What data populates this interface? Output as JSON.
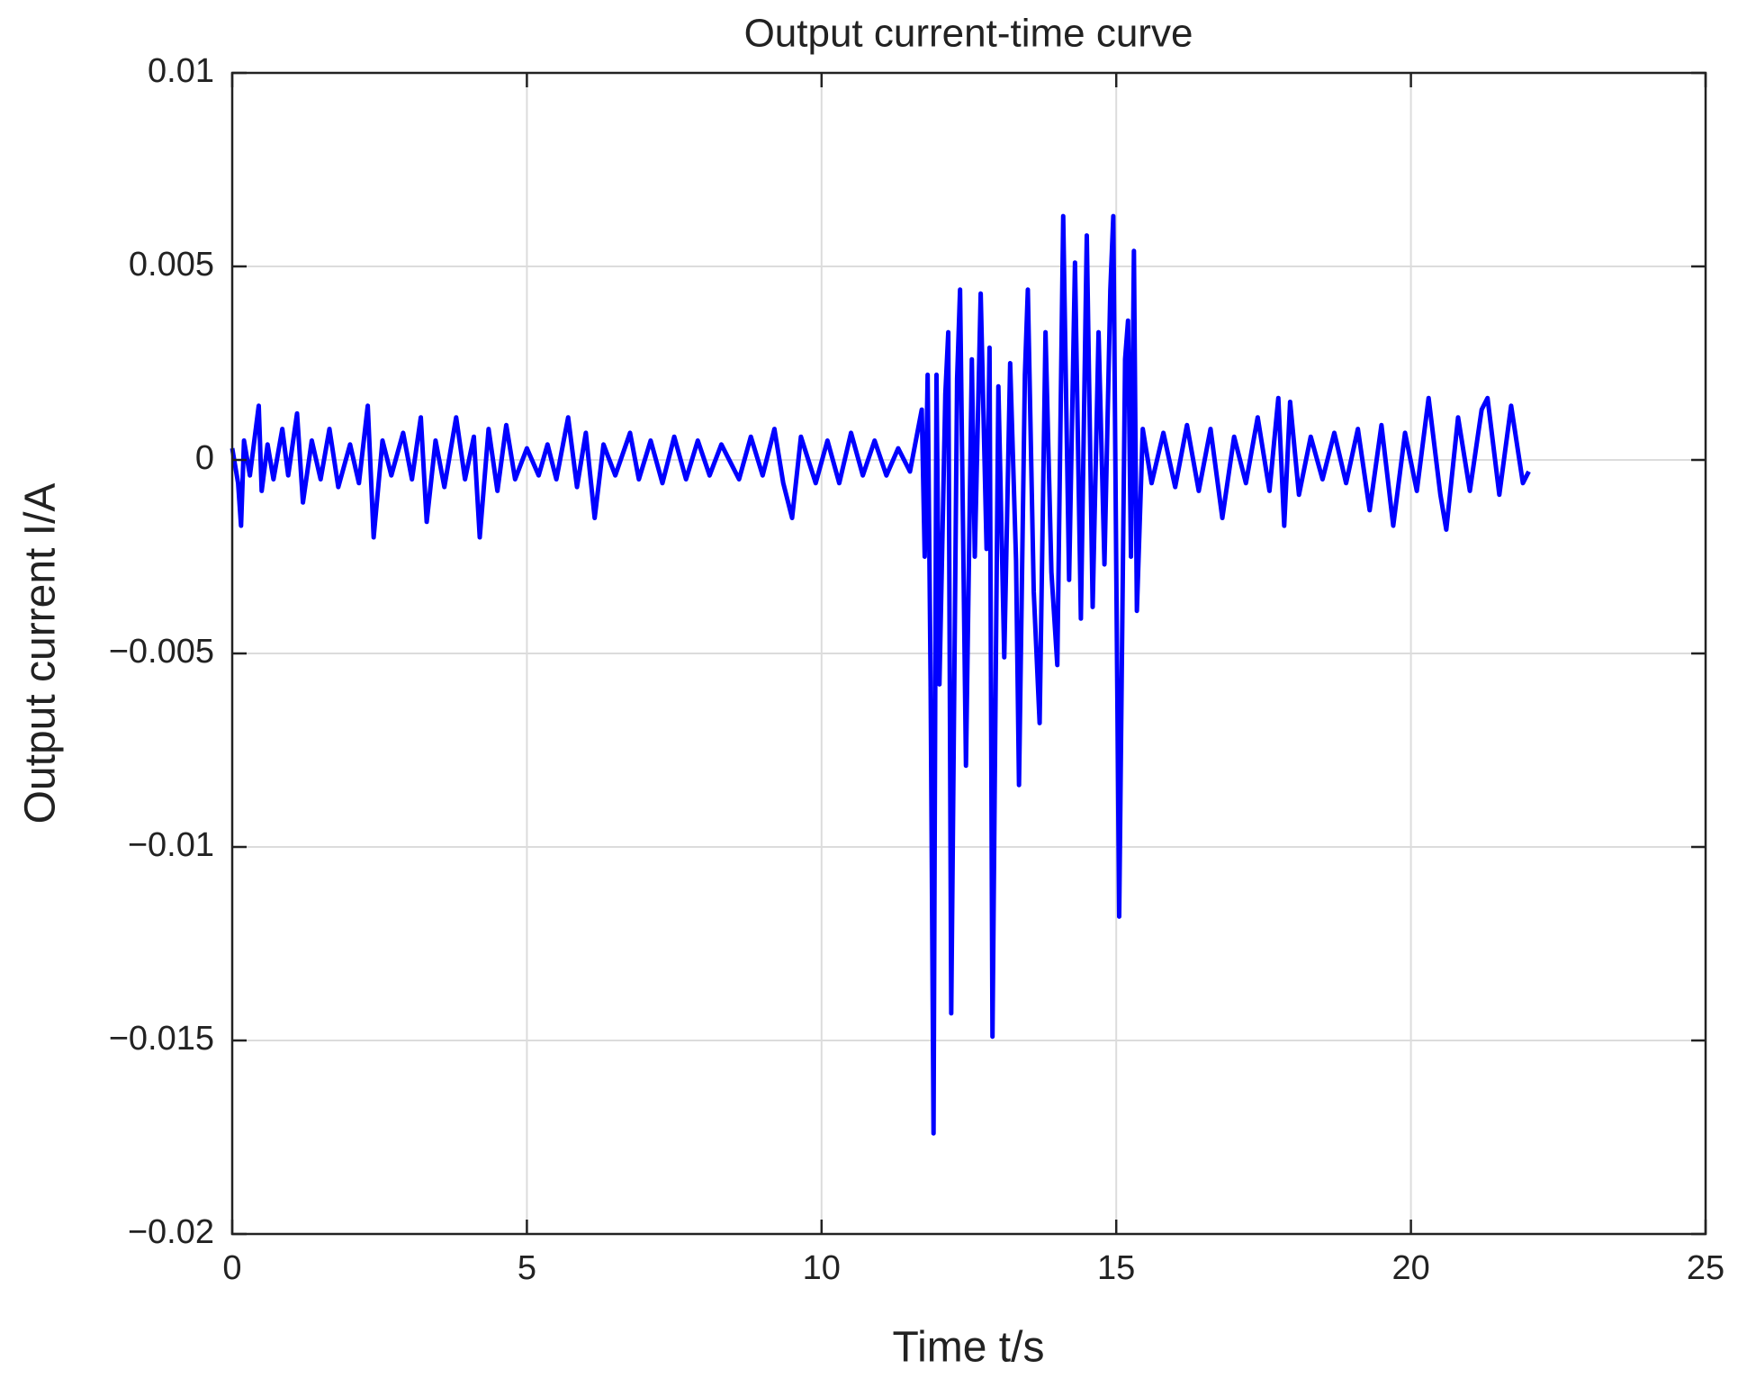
{
  "chart_data": {
    "type": "line",
    "title": "Output current-time curve",
    "x_label": "Time t/s",
    "y_label": "Output current I/A",
    "color": "#0000ff",
    "grid": true,
    "xlim": [
      0,
      25
    ],
    "xticks": [
      0,
      5,
      10,
      15,
      20,
      25
    ],
    "ylim": [
      -0.02,
      0.01
    ],
    "yticks": [
      {
        "value": -0.02,
        "label": "−0.02"
      },
      {
        "value": -0.015,
        "label": "−0.015"
      },
      {
        "value": -0.01,
        "label": "−0.01"
      },
      {
        "value": -0.005,
        "label": "−0.005"
      },
      0,
      0.005,
      0.01
    ],
    "x": [
      0,
      0.1,
      0.15,
      0.2,
      0.3,
      0.45,
      0.5,
      0.6,
      0.7,
      0.85,
      0.95,
      1.1,
      1.2,
      1.35,
      1.5,
      1.65,
      1.8,
      2.0,
      2.15,
      2.3,
      2.4,
      2.55,
      2.7,
      2.9,
      3.05,
      3.2,
      3.3,
      3.45,
      3.6,
      3.8,
      3.95,
      4.1,
      4.2,
      4.35,
      4.5,
      4.65,
      4.8,
      5.0,
      5.2,
      5.35,
      5.5,
      5.7,
      5.85,
      6.0,
      6.15,
      6.3,
      6.5,
      6.75,
      6.9,
      7.1,
      7.3,
      7.5,
      7.7,
      7.9,
      8.1,
      8.3,
      8.6,
      8.8,
      9.0,
      9.2,
      9.35,
      9.5,
      9.65,
      9.9,
      10.1,
      10.3,
      10.5,
      10.7,
      10.9,
      11.1,
      11.3,
      11.5,
      11.7,
      11.75,
      11.8,
      11.85,
      11.9,
      11.95,
      12.0,
      12.1,
      12.15,
      12.2,
      12.3,
      12.35,
      12.45,
      12.55,
      12.6,
      12.7,
      12.8,
      12.85,
      12.9,
      13.0,
      13.1,
      13.2,
      13.3,
      13.35,
      13.45,
      13.5,
      13.6,
      13.7,
      13.8,
      13.9,
      14.0,
      14.1,
      14.2,
      14.3,
      14.4,
      14.5,
      14.6,
      14.7,
      14.8,
      14.9,
      14.95,
      15.05,
      15.15,
      15.2,
      15.25,
      15.3,
      15.35,
      15.45,
      15.6,
      15.8,
      16.0,
      16.2,
      16.4,
      16.6,
      16.8,
      17.0,
      17.2,
      17.4,
      17.6,
      17.75,
      17.85,
      17.95,
      18.1,
      18.3,
      18.5,
      18.7,
      18.9,
      19.1,
      19.3,
      19.5,
      19.7,
      19.9,
      20.1,
      20.3,
      20.5,
      20.6,
      20.8,
      21.0,
      21.2,
      21.3,
      21.5,
      21.7,
      21.9,
      22.0
    ],
    "values": [
      0.0003,
      -0.0006,
      -0.0017,
      0.0005,
      -0.0004,
      0.0014,
      -0.0008,
      0.0004,
      -0.0005,
      0.0008,
      -0.0004,
      0.0012,
      -0.0011,
      0.0005,
      -0.0005,
      0.0008,
      -0.0007,
      0.0004,
      -0.0006,
      0.0014,
      -0.002,
      0.0005,
      -0.0004,
      0.0007,
      -0.0005,
      0.0011,
      -0.0016,
      0.0005,
      -0.0007,
      0.0011,
      -0.0005,
      0.0006,
      -0.002,
      0.0008,
      -0.0008,
      0.0009,
      -0.0005,
      0.0003,
      -0.0004,
      0.0004,
      -0.0005,
      0.0011,
      -0.0007,
      0.0007,
      -0.0015,
      0.0004,
      -0.0004,
      0.0007,
      -0.0005,
      0.0005,
      -0.0006,
      0.0006,
      -0.0005,
      0.0005,
      -0.0004,
      0.0004,
      -0.0005,
      0.0006,
      -0.0004,
      0.0008,
      -0.0006,
      -0.0015,
      0.0006,
      -0.0006,
      0.0005,
      -0.0006,
      0.0007,
      -0.0004,
      0.0005,
      -0.0004,
      0.0003,
      -0.0003,
      0.0013,
      -0.0025,
      0.0022,
      -0.0057,
      -0.0174,
      0.0022,
      -0.0058,
      0.0017,
      0.0033,
      -0.0143,
      0.0021,
      0.0044,
      -0.0079,
      0.0026,
      -0.0025,
      0.0043,
      -0.0023,
      0.0029,
      -0.0149,
      0.0019,
      -0.0051,
      0.0025,
      -0.0026,
      -0.0084,
      0.0022,
      0.0044,
      -0.0034,
      -0.0068,
      0.0033,
      -0.0029,
      -0.0053,
      0.0063,
      -0.0031,
      0.0051,
      -0.0041,
      0.0058,
      -0.0038,
      0.0033,
      -0.0027,
      0.0044,
      0.0063,
      -0.0118,
      0.0026,
      0.0036,
      -0.0025,
      0.0054,
      -0.0039,
      0.0008,
      -0.0006,
      0.0007,
      -0.0007,
      0.0009,
      -0.0008,
      0.0008,
      -0.0015,
      0.0006,
      -0.0006,
      0.0011,
      -0.0008,
      0.0016,
      -0.0017,
      0.0015,
      -0.0009,
      0.0006,
      -0.0005,
      0.0007,
      -0.0006,
      0.0008,
      -0.0013,
      0.0009,
      -0.0017,
      0.0007,
      -0.0008,
      0.0016,
      -0.0009,
      -0.0018,
      0.0011,
      -0.0008,
      0.0013,
      0.0016,
      -0.0009,
      0.0014,
      -0.0006,
      -0.0003
    ]
  }
}
